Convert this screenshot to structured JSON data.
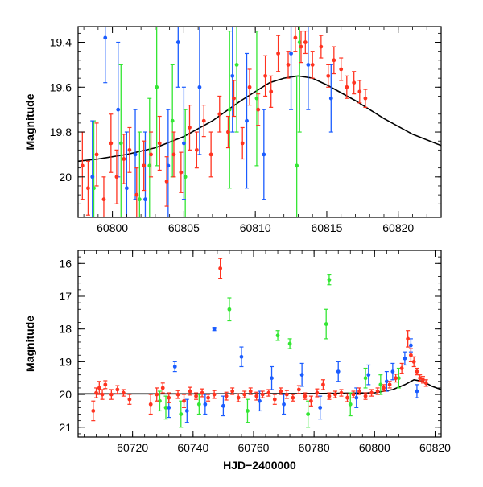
{
  "colors": {
    "red": "#ff3320",
    "green": "#33e633",
    "blue": "#1a5cff",
    "model": "#000000"
  },
  "chart_data": [
    {
      "type": "scatter",
      "name": "top-panel",
      "xlabel": "",
      "ylabel": "Magnitude",
      "xlim": [
        60797.6,
        60823.0
      ],
      "ylim": [
        20.18,
        19.33
      ],
      "y_inverted": true,
      "x_ticks": [
        60800,
        60805,
        60810,
        60815,
        60820
      ],
      "x_tick_labels": [
        "60800",
        "60805",
        "60810",
        "60815",
        "60820"
      ],
      "y_ticks": [
        19.4,
        19.6,
        19.8,
        20.0
      ],
      "y_tick_labels": [
        "19.4",
        "19.6",
        "19.8",
        "20"
      ],
      "model_curve": {
        "x": [
          60797.6,
          60799,
          60801,
          60803,
          60805,
          60807,
          60809,
          60811,
          60812,
          60813,
          60814,
          60815,
          60817,
          60819,
          60821,
          60823
        ],
        "y": [
          19.93,
          19.92,
          19.9,
          19.87,
          19.82,
          19.75,
          19.66,
          19.58,
          19.56,
          19.55,
          19.56,
          19.59,
          19.66,
          19.74,
          19.81,
          19.86
        ]
      },
      "series": [
        {
          "color_key": "red",
          "x": [
            60797.9,
            60798.3,
            60798.9,
            60799.4,
            60799.9,
            60800.3,
            60800.8,
            60801.2,
            60801.7,
            60802.2,
            60802.7,
            60803.3,
            60803.8,
            60804.3,
            60804.8,
            60805.4,
            60805.9,
            60806.4,
            60806.9,
            60807.5,
            60808.1,
            60808.5,
            60809.1,
            60809.6,
            60810.2,
            60810.7,
            60811.1,
            60811.6,
            60812.3,
            60812.8,
            60813.2,
            60813.5,
            60814.0,
            60814.6,
            60815.1,
            60815.5,
            60816.0,
            60816.4,
            60816.9,
            60817.3,
            60817.7
          ],
          "y": [
            19.95,
            20.05,
            19.9,
            20.1,
            19.85,
            20.0,
            19.92,
            19.88,
            20.08,
            19.95,
            19.9,
            19.85,
            20.02,
            19.9,
            19.98,
            19.78,
            19.88,
            19.75,
            19.9,
            19.72,
            19.8,
            19.65,
            19.85,
            19.6,
            19.7,
            19.55,
            19.62,
            19.45,
            19.5,
            19.38,
            19.42,
            19.4,
            19.5,
            19.42,
            19.55,
            19.48,
            19.52,
            19.6,
            19.58,
            19.62,
            19.65
          ],
          "err": [
            0.15,
            0.12,
            0.14,
            0.1,
            0.13,
            0.12,
            0.11,
            0.1,
            0.12,
            0.11,
            0.1,
            0.12,
            0.11,
            0.1,
            0.09,
            0.1,
            0.08,
            0.07,
            0.1,
            0.08,
            0.07,
            0.08,
            0.07,
            0.08,
            0.07,
            0.09,
            0.07,
            0.08,
            0.06,
            0.06,
            0.07,
            0.05,
            0.06,
            0.05,
            0.05,
            0.06,
            0.05,
            0.05,
            0.05,
            0.05,
            0.04
          ]
        },
        {
          "color_key": "green",
          "x": [
            60798.7,
            60800.6,
            60801.9,
            60802.6,
            60803.1,
            60804.2,
            60805.1,
            60808.2,
            60808.7,
            60810.1,
            60812.9,
            60813.1
          ],
          "y": [
            20.05,
            19.85,
            20.1,
            19.95,
            19.6,
            19.75,
            20.0,
            19.7,
            19.5,
            19.65,
            19.95,
            19.4
          ],
          "err": [
            0.3,
            0.35,
            0.3,
            0.3,
            0.35,
            0.25,
            0.3,
            0.35,
            0.3,
            0.3,
            0.4,
            0.4
          ]
        },
        {
          "color_key": "blue",
          "x": [
            60798.6,
            60799.5,
            60800.4,
            60801.0,
            60801.6,
            60802.3,
            60803.9,
            60804.6,
            60805.0,
            60806.1,
            60808.4,
            60809.4,
            60810.6,
            60812.5,
            60813.7,
            60815.3
          ],
          "y": [
            20.0,
            19.38,
            19.7,
            20.05,
            19.9,
            20.1,
            19.95,
            19.4,
            19.85,
            19.6,
            19.55,
            19.75,
            19.9,
            19.45,
            19.5,
            19.65
          ],
          "err": [
            0.25,
            0.2,
            0.3,
            0.25,
            0.2,
            0.3,
            0.25,
            0.2,
            0.25,
            0.3,
            0.25,
            0.3,
            0.2,
            0.25,
            0.2,
            0.15
          ]
        }
      ]
    },
    {
      "type": "scatter",
      "name": "bottom-panel",
      "xlabel": "HJD−2400000",
      "ylabel": "Magnitude",
      "xlim": [
        60702,
        60822
      ],
      "ylim": [
        21.3,
        15.6
      ],
      "y_inverted": true,
      "x_ticks": [
        60720,
        60740,
        60760,
        60780,
        60800,
        60820
      ],
      "x_tick_labels": [
        "60720",
        "60740",
        "60760",
        "60780",
        "60800",
        "60820"
      ],
      "y_ticks": [
        16,
        17,
        18,
        19,
        20,
        21
      ],
      "y_tick_labels": [
        "16",
        "17",
        "18",
        "19",
        "20",
        "21"
      ],
      "model_curve": {
        "x": [
          60702,
          60740,
          60780,
          60800,
          60806,
          60810,
          60813,
          60816,
          60819,
          60822
        ],
        "y": [
          19.98,
          19.98,
          19.97,
          19.95,
          19.85,
          19.7,
          19.55,
          19.6,
          19.75,
          19.85
        ]
      },
      "series": [
        {
          "color_key": "red",
          "x": [
            60707,
            60708,
            60709,
            60710,
            60711,
            60713,
            60715,
            60717,
            60719,
            60726,
            60728,
            60730,
            60732,
            60735,
            60737,
            60739,
            60741,
            60743,
            60745,
            60747,
            60749,
            60751,
            60753,
            60755,
            60757,
            60759,
            60761,
            60763,
            60765,
            60767,
            60769,
            60771,
            60773,
            60775,
            60777,
            60779,
            60781,
            60783,
            60785,
            60787,
            60789,
            60791,
            60793,
            60795,
            60797,
            60799,
            60801,
            60803,
            60805,
            60807,
            60809,
            60811,
            60812,
            60813,
            60814,
            60815,
            60816,
            60817
          ],
          "y": [
            20.5,
            19.95,
            19.8,
            20.0,
            19.7,
            20.0,
            19.85,
            19.95,
            20.15,
            20.3,
            20.0,
            19.8,
            20.1,
            20.0,
            20.2,
            19.9,
            20.05,
            19.95,
            20.1,
            20.0,
            16.15,
            20.05,
            19.9,
            20.1,
            20.0,
            19.9,
            20.05,
            20.0,
            19.95,
            20.15,
            19.9,
            20.0,
            20.1,
            19.85,
            20.05,
            20.2,
            19.95,
            19.7,
            20.05,
            20.0,
            19.95,
            20.1,
            20.0,
            19.9,
            20.05,
            19.95,
            19.9,
            19.8,
            19.7,
            19.5,
            19.2,
            18.3,
            18.8,
            19.0,
            19.3,
            19.5,
            19.55,
            19.65
          ],
          "err": [
            0.3,
            0.15,
            0.2,
            0.15,
            0.12,
            0.15,
            0.12,
            0.1,
            0.15,
            0.3,
            0.2,
            0.15,
            0.15,
            0.12,
            0.2,
            0.12,
            0.1,
            0.12,
            0.1,
            0.12,
            0.3,
            0.12,
            0.1,
            0.12,
            0.1,
            0.1,
            0.12,
            0.1,
            0.1,
            0.15,
            0.1,
            0.12,
            0.1,
            0.12,
            0.1,
            0.15,
            0.12,
            0.15,
            0.1,
            0.1,
            0.1,
            0.12,
            0.1,
            0.1,
            0.1,
            0.1,
            0.1,
            0.1,
            0.1,
            0.12,
            0.15,
            0.25,
            0.2,
            0.15,
            0.1,
            0.1,
            0.1,
            0.1
          ]
        },
        {
          "color_key": "green",
          "x": [
            60729,
            60731,
            60736,
            60742,
            60752,
            60758,
            60768,
            60772,
            60778,
            60784,
            60785,
            60792,
            60797,
            60802,
            60808
          ],
          "y": [
            20.2,
            20.4,
            20.6,
            20.3,
            17.4,
            20.5,
            18.2,
            18.45,
            20.6,
            17.85,
            16.5,
            20.3,
            19.5,
            19.7,
            19.5
          ],
          "err": [
            0.3,
            0.35,
            0.4,
            0.3,
            0.35,
            0.35,
            0.15,
            0.15,
            0.4,
            0.45,
            0.15,
            0.35,
            0.3,
            0.3,
            0.3
          ]
        },
        {
          "color_key": "blue",
          "x": [
            60732,
            60734,
            60738,
            60744,
            60747,
            60750,
            60756,
            60762,
            60766,
            60770,
            60776,
            60782,
            60788,
            60794,
            60798,
            60804,
            60806,
            60810,
            60812,
            60814
          ],
          "y": [
            20.4,
            19.15,
            20.5,
            20.3,
            18.0,
            20.35,
            18.85,
            20.2,
            19.5,
            20.3,
            19.4,
            20.4,
            19.3,
            20.1,
            19.4,
            19.6,
            19.3,
            18.9,
            18.5,
            19.9
          ],
          "err": [
            0.3,
            0.15,
            0.35,
            0.3,
            0.05,
            0.3,
            0.3,
            0.3,
            0.35,
            0.3,
            0.35,
            0.35,
            0.3,
            0.3,
            0.3,
            0.3,
            0.25,
            0.2,
            0.2,
            0.2
          ]
        }
      ]
    }
  ]
}
